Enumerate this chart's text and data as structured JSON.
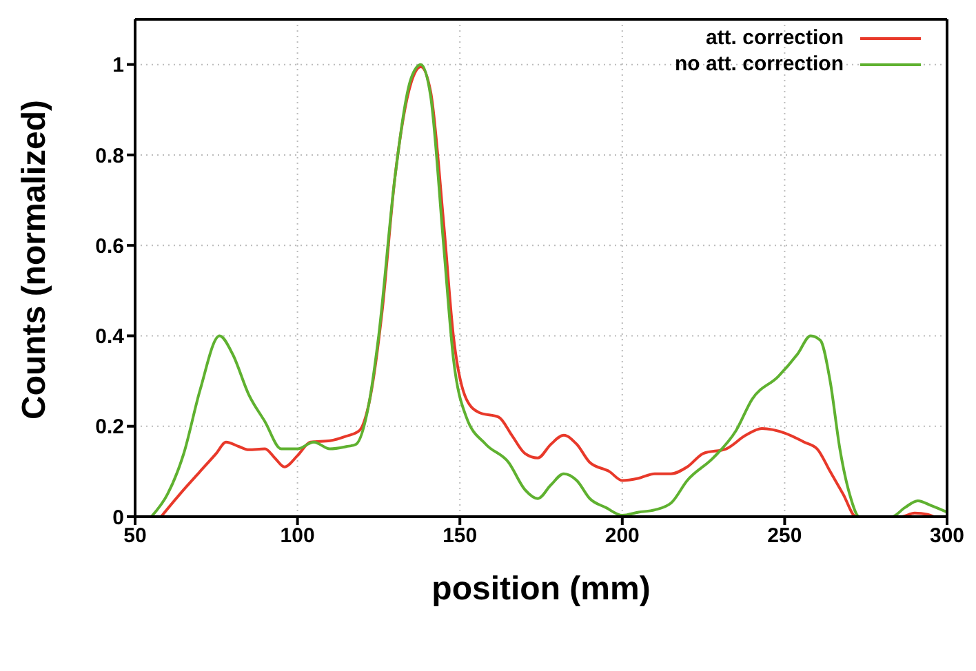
{
  "chart_data": {
    "type": "line",
    "xlabel": "position (mm)",
    "ylabel": "Counts (normalized)",
    "xlim": [
      50,
      300
    ],
    "xticks": [
      50,
      100,
      150,
      200,
      250,
      300
    ],
    "ylim": [
      0,
      1.1
    ],
    "yticks": [
      0,
      0.2,
      0.4,
      0.6,
      0.8,
      1
    ],
    "grid": true,
    "legend": "top right",
    "series": [
      {
        "name": "att. correction",
        "color": "#e8392a",
        "x": [
          58,
          65,
          70,
          75,
          78,
          82,
          85,
          90,
          93,
          96,
          100,
          104,
          110,
          115,
          119,
          122,
          126,
          130,
          135,
          138,
          141,
          145,
          148,
          152,
          156,
          162,
          166,
          170,
          174,
          178,
          182,
          186,
          190,
          196,
          200,
          205,
          210,
          215,
          220,
          225,
          232,
          238,
          243,
          250,
          256,
          260,
          264,
          268,
          272,
          286,
          290,
          294,
          296
        ],
        "values": [
          0,
          0.06,
          0.1,
          0.14,
          0.165,
          0.155,
          0.148,
          0.15,
          0.13,
          0.11,
          0.135,
          0.165,
          0.168,
          0.178,
          0.19,
          0.25,
          0.45,
          0.75,
          0.96,
          0.995,
          0.94,
          0.65,
          0.4,
          0.26,
          0.23,
          0.22,
          0.18,
          0.14,
          0.13,
          0.16,
          0.18,
          0.16,
          0.12,
          0.1,
          0.08,
          0.085,
          0.095,
          0.095,
          0.11,
          0.14,
          0.15,
          0.18,
          0.195,
          0.185,
          0.165,
          0.15,
          0.1,
          0.05,
          0,
          0,
          0.008,
          0.005,
          0
        ]
      },
      {
        "name": "no att. correction",
        "color": "#5fb130",
        "x": [
          55,
          60,
          65,
          70,
          76,
          80,
          85,
          90,
          95,
          100,
          105,
          110,
          115,
          118,
          122,
          125,
          130,
          135,
          138,
          141,
          145,
          148,
          152,
          158,
          165,
          170,
          174,
          178,
          182,
          186,
          190,
          195,
          200,
          205,
          210,
          215,
          220,
          228,
          235,
          240,
          248,
          254,
          258,
          261,
          264,
          267,
          270,
          273,
          283,
          287,
          291,
          295,
          300
        ],
        "values": [
          0,
          0.05,
          0.14,
          0.28,
          0.4,
          0.36,
          0.27,
          0.21,
          0.15,
          0.15,
          0.165,
          0.15,
          0.155,
          0.16,
          0.25,
          0.4,
          0.75,
          0.97,
          1,
          0.93,
          0.6,
          0.35,
          0.22,
          0.16,
          0.12,
          0.06,
          0.04,
          0.07,
          0.095,
          0.08,
          0.04,
          0.02,
          0.003,
          0.01,
          0.015,
          0.03,
          0.08,
          0.13,
          0.19,
          0.26,
          0.31,
          0.36,
          0.4,
          0.39,
          0.3,
          0.15,
          0.05,
          0,
          0,
          0.02,
          0.035,
          0.025,
          0.01
        ]
      }
    ]
  }
}
